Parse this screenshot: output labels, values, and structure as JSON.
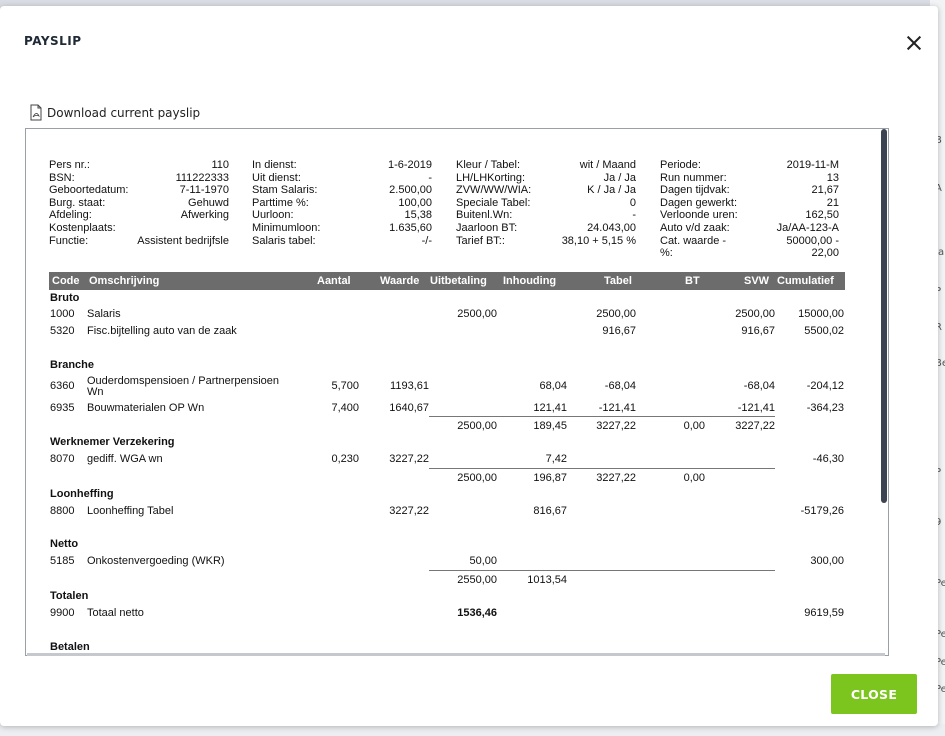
{
  "background": {
    "right_letters": [
      "B",
      "A",
      "Ja",
      "P",
      "R",
      "Be",
      "P",
      "9",
      "Pe",
      "Pe",
      "Pe",
      "Pe"
    ]
  },
  "modal": {
    "title": "PAYSLIP",
    "download_label": "Download current payslip",
    "close_label": "CLOSE"
  },
  "header": {
    "col1": [
      {
        "label": "Pers nr.:",
        "value": "110"
      },
      {
        "label": "BSN:",
        "value": "111222333"
      },
      {
        "label": "Geboortedatum:",
        "value": "7-11-1970"
      },
      {
        "label": "Burg. staat:",
        "value": "Gehuwd"
      },
      {
        "label": "Afdeling:",
        "value": "Afwerking"
      },
      {
        "label": "Kostenplaats:",
        "value": ""
      },
      {
        "label": "Functie:",
        "value": "Assistent bedrijfsle"
      }
    ],
    "col2": [
      {
        "label": "In dienst:",
        "value": "1-6-2019"
      },
      {
        "label": "Uit dienst:",
        "value": "-"
      },
      {
        "label": "Stam Salaris:",
        "value": "2.500,00"
      },
      {
        "label": "Parttime %:",
        "value": "100,00"
      },
      {
        "label": "Uurloon:",
        "value": "15,38"
      },
      {
        "label": "Minimumloon:",
        "value": "1.635,60"
      },
      {
        "label": "Salaris tabel:",
        "value": "-/-"
      }
    ],
    "col3": [
      {
        "label": "Kleur / Tabel:",
        "value": "wit / Maand"
      },
      {
        "label": "LH/LHKorting:",
        "value": "Ja / Ja"
      },
      {
        "label": "ZVW/WW/WIA:",
        "value": "K / Ja / Ja"
      },
      {
        "label": "Speciale Tabel:",
        "value": "0"
      },
      {
        "label": "Buitenl.Wn:",
        "value": "-"
      },
      {
        "label": "Jaarloon BT:",
        "value": "24.043,00"
      },
      {
        "label": "Tarief BT::",
        "value": "38,10 + 5,15 %"
      }
    ],
    "col4": [
      {
        "label": "Periode:",
        "value": "2019-11-M"
      },
      {
        "label": "Run nummer:",
        "value": "13"
      },
      {
        "label": "Dagen tijdvak:",
        "value": "21,67"
      },
      {
        "label": "Dagen gewerkt:",
        "value": "21"
      },
      {
        "label": "Verloonde uren:",
        "value": "162,50"
      },
      {
        "label": "Auto v/d zaak:",
        "value": "Ja/AA-123-A"
      },
      {
        "label": "Cat. waarde -",
        "value": "50000,00 -"
      },
      {
        "label": "%:",
        "value": "22,00"
      }
    ]
  },
  "table": {
    "columns": [
      "Code",
      "Omschrijving",
      "Aantal",
      "Waarde",
      "Uitbetaling",
      "Inhouding",
      "Tabel",
      "BT",
      "SVW",
      "Cumulatief"
    ],
    "sections": {
      "bruto": "Bruto",
      "branche": "Branche",
      "werknemer": "Werknemer Verzekering",
      "loonheffing": "Loonheffing",
      "netto": "Netto",
      "totalen": "Totalen",
      "betalen": "Betalen"
    },
    "rows": {
      "r1000": {
        "code": "1000",
        "desc": "Salaris",
        "uit": "2500,00",
        "tabel": "2500,00",
        "svw": "2500,00",
        "cum": "15000,00"
      },
      "r5320": {
        "code": "5320",
        "desc": "Fisc.bijtelling auto van de zaak",
        "tabel": "916,67",
        "svw": "916,67",
        "cum": "5500,02"
      },
      "r6360": {
        "code": "6360",
        "desc1": "Ouderdomspensioen / Partnerpensioen",
        "desc2": "Wn",
        "aantal": "5,700",
        "waarde": "1193,61",
        "inh": "68,04",
        "tabel": "-68,04",
        "svw": "-68,04",
        "cum": "-204,12"
      },
      "r6935": {
        "code": "6935",
        "desc": "Bouwmaterialen OP Wn",
        "aantal": "7,400",
        "waarde": "1640,67",
        "inh": "121,41",
        "tabel": "-121,41",
        "svw": "-121,41",
        "cum": "-364,23"
      },
      "sub1": {
        "uit": "2500,00",
        "inh": "189,45",
        "tabel": "3227,22",
        "bt": "0,00",
        "svw": "3227,22"
      },
      "r8070": {
        "code": "8070",
        "desc": "gediff. WGA wn",
        "aantal": "0,230",
        "waarde": "3227,22",
        "inh": "7,42",
        "cum": "-46,30"
      },
      "sub2": {
        "uit": "2500,00",
        "inh": "196,87",
        "tabel": "3227,22",
        "bt": "0,00"
      },
      "r8800": {
        "code": "8800",
        "desc": "Loonheffing Tabel",
        "waarde": "3227,22",
        "inh": "816,67",
        "cum": "-5179,26"
      },
      "r5185": {
        "code": "5185",
        "desc": "Onkostenvergoeding (WKR)",
        "uit": "50,00",
        "cum": "300,00"
      },
      "sub3": {
        "uit": "2550,00",
        "inh": "1013,54"
      },
      "r9900": {
        "code": "9900",
        "desc": "Totaal netto",
        "uit": "1536,46",
        "cum": "9619,59"
      }
    }
  }
}
